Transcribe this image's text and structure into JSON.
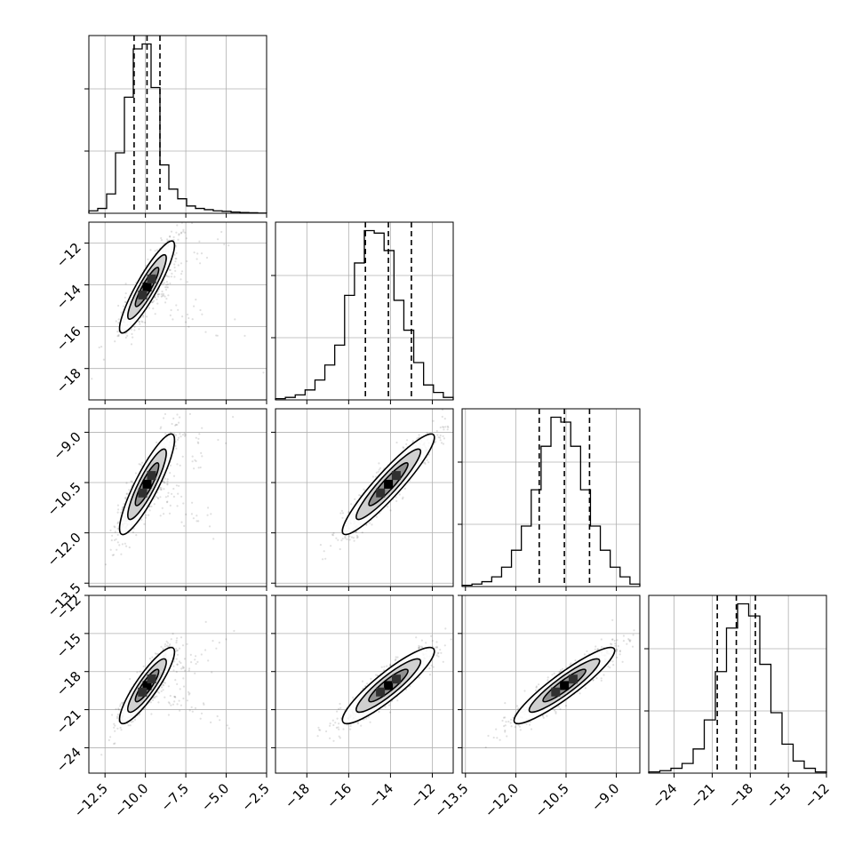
{
  "chart_data": {
    "type": "corner",
    "variables": [
      {
        "range": [
          -13.5,
          -2.5
        ],
        "ticks": [
          "−12.5",
          "−10.0",
          "−7.5",
          "−5.0",
          "−2.5"
        ],
        "tick_values": [
          -12.5,
          -10.0,
          -7.5,
          -5.0,
          -2.5
        ],
        "quantiles": [
          -10.7,
          -9.9,
          -9.1
        ],
        "hist": [
          1,
          2,
          8,
          25,
          48,
          68,
          70,
          52,
          20,
          10,
          6,
          3,
          2,
          1.5,
          1,
          0.8,
          0.5,
          0.3,
          0.2,
          0.1
        ]
      },
      {
        "range": [
          -19.5,
          -11.0
        ],
        "ticks": [
          "−12",
          "−14",
          "−16",
          "−18"
        ],
        "tick_values": [
          -12,
          -14,
          -16,
          -18
        ],
        "bottom_ticks": [
          "−18",
          "−16",
          "−14",
          "−12"
        ],
        "bottom_tick_values": [
          -18,
          -16,
          -14,
          -12
        ],
        "quantiles": [
          -15.2,
          -14.1,
          -13.0
        ],
        "hist": [
          0.5,
          1,
          2,
          4,
          8,
          14,
          22,
          42,
          55,
          68,
          67,
          60,
          40,
          28,
          15,
          6,
          3,
          1
        ]
      },
      {
        "range": [
          -13.6,
          -8.3
        ],
        "ticks": [
          "−9.0",
          "−10.5",
          "−12.0",
          "−13.5"
        ],
        "tick_values": [
          -9.0,
          -10.5,
          -12.0,
          -13.5
        ],
        "bottom_ticks": [
          "−13.5",
          "−12.0",
          "−10.5",
          "−9.0"
        ],
        "bottom_tick_values": [
          -13.5,
          -12.0,
          -10.5,
          -9.0
        ],
        "quantiles": [
          -11.3,
          -10.55,
          -9.8
        ],
        "hist": [
          0.5,
          1,
          2,
          4,
          8,
          15,
          25,
          40,
          58,
          70,
          68,
          58,
          40,
          25,
          15,
          8,
          4,
          1
        ]
      },
      {
        "range": [
          -26.0,
          -12.0
        ],
        "ticks": [
          "−12",
          "−15",
          "−18",
          "−21",
          "−24"
        ],
        "tick_values": [
          -12,
          -15,
          -18,
          -21,
          -24
        ],
        "bottom_ticks": [
          "−24",
          "−21",
          "−18",
          "−15",
          "−12"
        ],
        "bottom_tick_values": [
          -24,
          -21,
          -18,
          -15,
          -12
        ],
        "quantiles": [
          -20.6,
          -19.1,
          -17.6
        ],
        "hist": [
          0.5,
          1,
          2,
          4,
          10,
          22,
          42,
          60,
          70,
          65,
          45,
          25,
          12,
          5,
          2,
          0.5
        ]
      }
    ],
    "pairs": [
      {
        "x": 0,
        "y": 1,
        "mean": [
          -9.9,
          -14.1
        ],
        "sd": [
          0.85,
          1.1
        ],
        "rho": 0.9
      },
      {
        "x": 0,
        "y": 2,
        "mean": [
          -9.9,
          -10.55
        ],
        "sd": [
          0.85,
          0.75
        ],
        "rho": 0.88
      },
      {
        "x": 1,
        "y": 2,
        "mean": [
          -14.1,
          -10.55
        ],
        "sd": [
          1.1,
          0.75
        ],
        "rho": 0.93
      },
      {
        "x": 0,
        "y": 3,
        "mean": [
          -9.9,
          -19.1
        ],
        "sd": [
          0.85,
          1.5
        ],
        "rho": 0.88
      },
      {
        "x": 1,
        "y": 3,
        "mean": [
          -14.1,
          -19.1
        ],
        "sd": [
          1.1,
          1.5
        ],
        "rho": 0.9
      },
      {
        "x": 2,
        "y": 3,
        "mean": [
          -10.55,
          -19.1
        ],
        "sd": [
          0.75,
          1.5
        ],
        "rho": 0.92
      }
    ],
    "grid": true
  }
}
